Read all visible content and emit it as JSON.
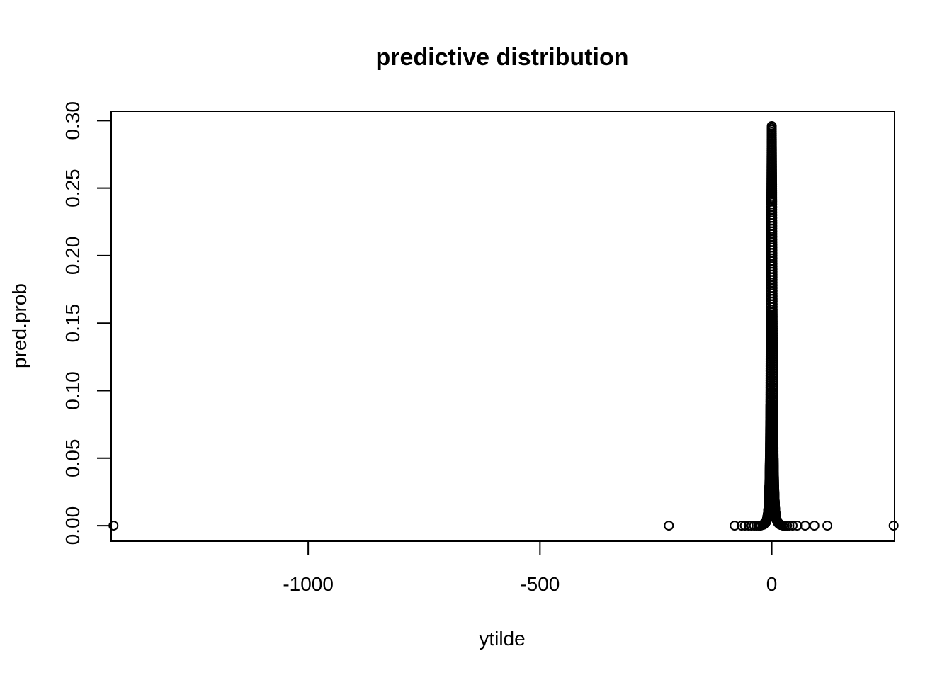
{
  "chart_data": {
    "type": "scatter",
    "title": "predictive distribution",
    "xlabel": "ytilde",
    "ylabel": "pred.prob",
    "xlim": [
      -1425,
      265
    ],
    "ylim": [
      -0.0115,
      0.307
    ],
    "x_ticks": [
      -1000,
      -500,
      0
    ],
    "x_tick_labels": [
      "-1000",
      "-500",
      "0"
    ],
    "y_ticks": [
      0.0,
      0.05,
      0.1,
      0.15,
      0.2,
      0.25,
      0.3
    ],
    "y_tick_labels": [
      "0.00",
      "0.05",
      "0.10",
      "0.15",
      "0.20",
      "0.25",
      "0.30"
    ],
    "grid": false,
    "legend": "none",
    "marker": "open-circle",
    "series": [
      {
        "points": [
          {
            "x": -1420,
            "y": 0.0
          },
          {
            "x": -222,
            "y": 0.0
          },
          {
            "x": -80,
            "y": 0.0
          },
          {
            "x": -65,
            "y": 0.0
          },
          {
            "x": -58,
            "y": 0.0
          },
          {
            "x": -50,
            "y": 0.0
          },
          {
            "x": -44,
            "y": 0.0
          },
          {
            "x": -38,
            "y": 0.0
          },
          {
            "x": -33,
            "y": 0.0
          },
          {
            "x": -28,
            "y": 0.0
          },
          {
            "x": -24,
            "y": 0.0
          },
          {
            "x": -20,
            "y": 0.0005
          },
          {
            "x": -17,
            "y": 0.001
          },
          {
            "x": -14,
            "y": 0.002
          },
          {
            "x": -12,
            "y": 0.003
          },
          {
            "x": -10,
            "y": 0.005
          },
          {
            "x": -8,
            "y": 0.009
          },
          {
            "x": -7,
            "y": 0.013
          },
          {
            "x": -6,
            "y": 0.02
          },
          {
            "x": -5,
            "y": 0.03
          },
          {
            "x": -4,
            "y": 0.05
          },
          {
            "x": -3,
            "y": 0.09
          },
          {
            "x": -2,
            "y": 0.16
          },
          {
            "x": -1,
            "y": 0.24
          },
          {
            "x": 0,
            "y": 0.296
          },
          {
            "x": 1,
            "y": 0.24
          },
          {
            "x": 2,
            "y": 0.16
          },
          {
            "x": 3,
            "y": 0.09
          },
          {
            "x": 4,
            "y": 0.05
          },
          {
            "x": 5,
            "y": 0.03
          },
          {
            "x": 6,
            "y": 0.02
          },
          {
            "x": 7,
            "y": 0.013
          },
          {
            "x": 8,
            "y": 0.009
          },
          {
            "x": 10,
            "y": 0.005
          },
          {
            "x": 12,
            "y": 0.003
          },
          {
            "x": 14,
            "y": 0.002
          },
          {
            "x": 17,
            "y": 0.001
          },
          {
            "x": 20,
            "y": 0.0005
          },
          {
            "x": 24,
            "y": 0.0
          },
          {
            "x": 28,
            "y": 0.0
          },
          {
            "x": 33,
            "y": 0.0
          },
          {
            "x": 38,
            "y": 0.0
          },
          {
            "x": 45,
            "y": 0.0
          },
          {
            "x": 55,
            "y": 0.0
          },
          {
            "x": 72,
            "y": 0.0
          },
          {
            "x": 92,
            "y": 0.0
          },
          {
            "x": 120,
            "y": 0.0
          },
          {
            "x": 263,
            "y": 0.0
          }
        ]
      }
    ]
  }
}
